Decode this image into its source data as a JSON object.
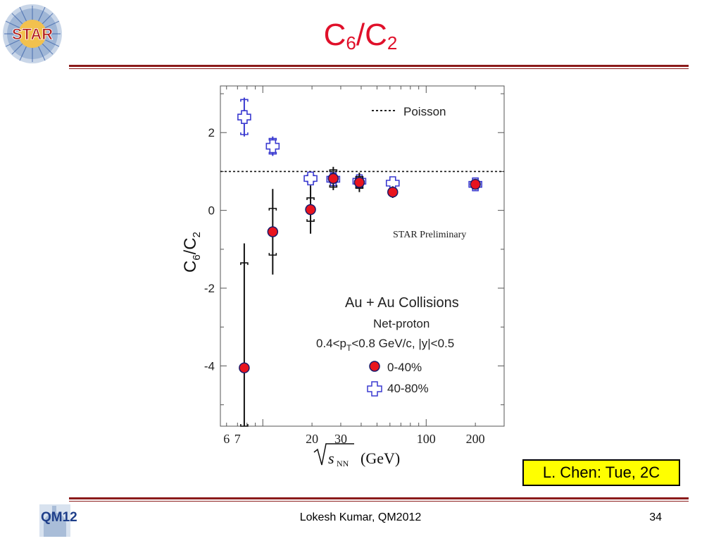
{
  "slide": {
    "title_main": "C",
    "title_sub1": "6",
    "title_sep": "/C",
    "title_sub2": "2",
    "star_logo_text": "STAR",
    "qm_logo_text": "QM12",
    "reference": "L. Chen: Tue, 2C",
    "footer": "Lokesh Kumar, QM2012",
    "page_number": "34",
    "colors": {
      "title": "#e0102a",
      "rule": "#8b1a1a",
      "reference_bg": "#ffff00"
    }
  },
  "chart_data": {
    "type": "scatter",
    "x_scale": "log",
    "xlim": [
      5.5,
      300
    ],
    "ylim": [
      -5.55,
      3.2
    ],
    "xticks": [
      6,
      7,
      20,
      30,
      100,
      200
    ],
    "xtick_labels": [
      "6",
      "7",
      "20",
      "30",
      "100",
      "200"
    ],
    "yticks": [
      -4,
      -2,
      0,
      2
    ],
    "ytick_labels": [
      "-4",
      "-2",
      "0",
      "2"
    ],
    "xlabel_root": "s",
    "xlabel_sub": "NN",
    "xlabel_unit": "(GeV)",
    "ylabel_main": "C",
    "ylabel_sub1": "6",
    "ylabel_sep": "/C",
    "ylabel_sub2": "2",
    "reference_line": {
      "label": "Poisson",
      "y": 1.0,
      "style": "dotted"
    },
    "preliminary_label": "STAR Preliminary",
    "annotations": {
      "system": "Au + Au Collisions",
      "observable": "Net-proton",
      "cut_prefix": "0.4<p",
      "cut_sub": "T",
      "cut_suffix": "<0.8 GeV/c, |y|<0.5"
    },
    "series": [
      {
        "name": "0-40%",
        "marker": "circle",
        "color": "#e8141e",
        "x": [
          7.7,
          11.5,
          19.6,
          27,
          39,
          62.4,
          200
        ],
        "y": [
          -4.05,
          -0.55,
          0.02,
          0.82,
          0.72,
          0.47,
          0.67
        ],
        "stat_err": [
          3.2,
          1.1,
          0.62,
          0.3,
          0.25,
          0.15,
          0.1
        ],
        "sys_err": [
          2.7,
          0.6,
          0.3,
          0.22,
          0.15,
          0.08,
          0.05
        ]
      },
      {
        "name": "40-80%",
        "marker": "open-cross",
        "color": "#3a3ad0",
        "x": [
          7.7,
          11.5,
          19.6,
          27,
          39,
          62.4,
          200
        ],
        "y": [
          2.4,
          1.65,
          0.82,
          0.8,
          0.75,
          0.7,
          0.67
        ],
        "stat_err": [
          0.5,
          0.25,
          0.1,
          0.1,
          0.08,
          0.05,
          0.04
        ],
        "sys_err": [
          0.45,
          0.2,
          0.08,
          0.08,
          0.06,
          0.04,
          0.03
        ]
      }
    ]
  }
}
